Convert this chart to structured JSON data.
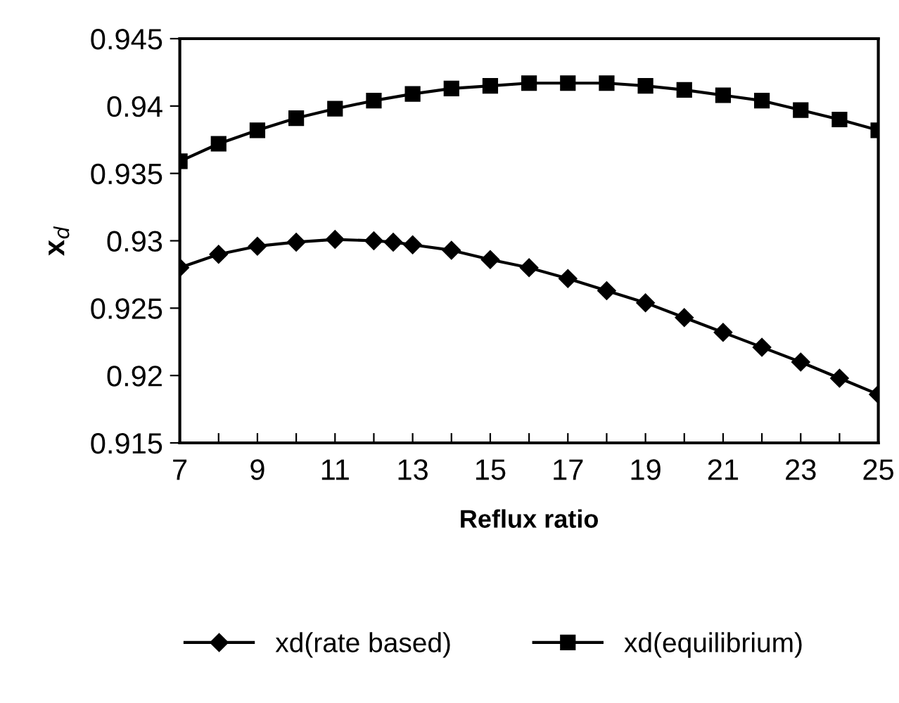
{
  "chart_data": {
    "type": "line",
    "xlabel": "Reflux ratio",
    "ylabel": "x$_{d}$",
    "xlim": [
      7,
      25
    ],
    "xticks": [
      7,
      {
        "value": 8,
        "label": null
      },
      9,
      {
        "value": 10,
        "label": null
      },
      11,
      {
        "value": 12,
        "label": null
      },
      13,
      {
        "value": 14,
        "label": null
      },
      15,
      {
        "value": 16,
        "label": null
      },
      17,
      {
        "value": 18,
        "label": null
      },
      19,
      {
        "value": 20,
        "label": null
      },
      21,
      {
        "value": 22,
        "label": null
      },
      23,
      {
        "value": 24,
        "label": null
      },
      25
    ],
    "ylim": [
      0.915,
      0.945
    ],
    "yticks": [
      0.915,
      0.92,
      0.925,
      0.93,
      0.935,
      0.94,
      0.945
    ],
    "grid": false,
    "legend": "bottom",
    "line_style": "solid",
    "series": [
      {
        "name": "xd(rate based)",
        "color": "#000000",
        "marker": "diamond",
        "x": [
          7,
          8,
          9,
          10,
          11,
          12,
          12.5,
          13,
          14,
          15,
          16,
          17,
          18,
          19,
          20,
          21,
          22,
          23,
          24,
          25
        ],
        "values": [
          0.928,
          0.929,
          0.9296,
          0.9299,
          0.9301,
          0.93,
          0.9299,
          0.9297,
          0.9293,
          0.9286,
          0.928,
          0.9272,
          0.9263,
          0.9254,
          0.9243,
          0.9232,
          0.9221,
          0.921,
          0.9198,
          0.9186
        ]
      },
      {
        "name": "xd(equilibrium)",
        "color": "#000000",
        "marker": "square",
        "x": [
          7,
          8,
          9,
          10,
          11,
          12,
          13,
          14,
          15,
          16,
          17,
          18,
          19,
          20,
          21,
          22,
          23,
          24,
          25
        ],
        "values": [
          0.9359,
          0.9372,
          0.9382,
          0.9391,
          0.9398,
          0.9404,
          0.9409,
          0.9413,
          0.9415,
          0.9417,
          0.9417,
          0.9417,
          0.9415,
          0.9412,
          0.9408,
          0.9404,
          0.9397,
          0.939,
          0.9382
        ]
      }
    ]
  }
}
